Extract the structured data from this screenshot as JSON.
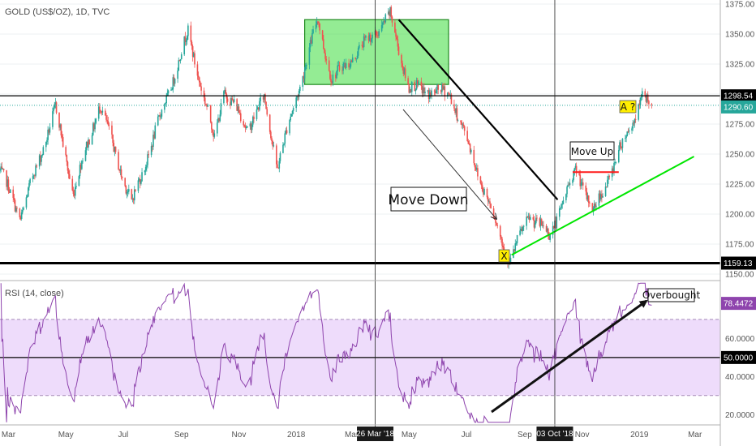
{
  "chart_data": [
    {
      "type": "candlestick",
      "title": "GOLD (US$/OZ), 1D, TVC",
      "ylim": [
        1150,
        1375
      ],
      "yticks": [
        1150,
        1175,
        1200,
        1225,
        1250,
        1275,
        1300,
        1325,
        1350,
        1375
      ],
      "x_labels": [
        "Mar",
        "May",
        "Jul",
        "Sep",
        "Nov",
        "2018",
        "Mar",
        "May",
        "Jul",
        "Sep",
        "Nov",
        "2019",
        "Mar"
      ],
      "crosshair_labels": [
        "26 Mar '18",
        "03 Oct '18"
      ],
      "price_tags": [
        {
          "value": "1298.54",
          "color": "#000000"
        },
        {
          "value": "1290.60",
          "color": "#26a69a"
        },
        {
          "value": "1159.13",
          "color": "#000000"
        }
      ],
      "last_close": 1290.6,
      "anchor_closes": [
        {
          "date": "2017-02-20",
          "close": 1236
        },
        {
          "date": "2017-03-14",
          "close": 1198
        },
        {
          "date": "2017-04-20",
          "close": 1288
        },
        {
          "date": "2017-05-09",
          "close": 1218
        },
        {
          "date": "2017-06-06",
          "close": 1292
        },
        {
          "date": "2017-07-10",
          "close": 1208
        },
        {
          "date": "2017-09-08",
          "close": 1351
        },
        {
          "date": "2017-10-06",
          "close": 1262
        },
        {
          "date": "2017-10-16",
          "close": 1304
        },
        {
          "date": "2017-11-10",
          "close": 1272
        },
        {
          "date": "2017-11-28",
          "close": 1296
        },
        {
          "date": "2017-12-12",
          "close": 1240
        },
        {
          "date": "2018-01-24",
          "close": 1362
        },
        {
          "date": "2018-02-08",
          "close": 1312
        },
        {
          "date": "2018-04-11",
          "close": 1365
        },
        {
          "date": "2018-05-01",
          "close": 1305
        },
        {
          "date": "2018-06-14",
          "close": 1300
        },
        {
          "date": "2018-08-16",
          "close": 1160
        },
        {
          "date": "2018-09-06",
          "close": 1200
        },
        {
          "date": "2018-09-27",
          "close": 1182
        },
        {
          "date": "2018-10-26",
          "close": 1238
        },
        {
          "date": "2018-11-13",
          "close": 1201
        },
        {
          "date": "2018-12-04",
          "close": 1240
        },
        {
          "date": "2019-01-04",
          "close": 1297
        },
        {
          "date": "2019-01-14",
          "close": 1290.6
        }
      ],
      "horizontal_lines": [
        1298.54,
        1159.13
      ],
      "rectangle": {
        "from": "2018-01-10",
        "to": "2018-06-12",
        "low": 1308,
        "high": 1362
      },
      "trend_lines": [
        {
          "color": "#000000",
          "from": {
            "date": "2018-04-20",
            "value": 1362
          },
          "to": {
            "date": "2018-10-06",
            "value": 1212
          }
        },
        {
          "color": "#00e600",
          "from": {
            "date": "2018-08-18",
            "value": 1166
          },
          "to": {
            "date": "2019-02-28",
            "value": 1248
          }
        },
        {
          "color": "#ff1a1a",
          "from": {
            "date": "2018-10-22",
            "value": 1235
          },
          "to": {
            "date": "2018-12-10",
            "value": 1235
          }
        }
      ],
      "annotations": [
        {
          "text": "Move Down"
        },
        {
          "text": "Move Up"
        },
        {
          "text": "X"
        },
        {
          "text": "A ?"
        }
      ]
    },
    {
      "type": "line",
      "title": "RSI (14, close)",
      "ylim": [
        15,
        90
      ],
      "yticks": [
        "20.0000",
        "40.0000",
        "60.0000"
      ],
      "bands": [
        30,
        70
      ],
      "level_tags": [
        {
          "value": "50.0000",
          "color": "#000000"
        },
        {
          "value": "78.4472",
          "color": "#8e44ad"
        }
      ],
      "last_value": 78.4472,
      "series": [
        {
          "color": "#8e44ad"
        }
      ],
      "annotations": [
        {
          "text": "Overbought"
        }
      ]
    }
  ]
}
